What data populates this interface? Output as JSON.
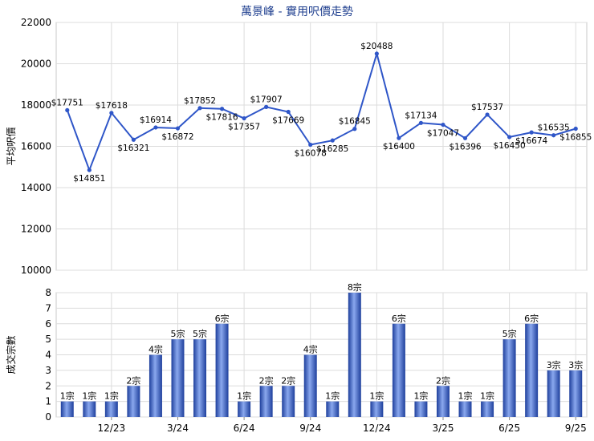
{
  "chart_data": [
    {
      "type": "line",
      "title": "萬景峰 - 實用呎價走勢",
      "ylabel": "平均呎價",
      "ylim": [
        10000,
        22000
      ],
      "yticks": [
        10000,
        12000,
        14000,
        16000,
        18000,
        20000,
        22000
      ],
      "grid": true,
      "color": "#2f56c8",
      "series": [
        {
          "values": [
            17751,
            14851,
            17618,
            16321,
            16914,
            16872,
            17852,
            17816,
            17357,
            17907,
            17669,
            16078,
            16285,
            16845,
            20488,
            16400,
            17134,
            17047,
            16396,
            17537,
            16450,
            16674,
            16535,
            16855
          ],
          "labels": [
            "$17751",
            "$14851",
            "$17618",
            "$16321",
            "$16914",
            "$16872",
            "$17852",
            "$17816",
            "$17357",
            "$17907",
            "$17669",
            "$16078",
            "$16285",
            "$16845",
            "$20488",
            "$16400",
            "$17134",
            "$17047",
            "$16396",
            "$17537",
            "$16450",
            "$16674",
            "$16535",
            "$16855"
          ]
        }
      ]
    },
    {
      "type": "bar",
      "ylabel": "成交宗數",
      "ylim": [
        0,
        8
      ],
      "yticks": [
        0,
        1,
        2,
        3,
        4,
        5,
        6,
        7,
        8
      ],
      "grid": true,
      "color": "#3a62c9",
      "x_tick_labels": [
        "12/23",
        "3/24",
        "6/24",
        "9/24",
        "12/24",
        "3/25",
        "6/25",
        "9/25"
      ],
      "series": [
        {
          "values": [
            1,
            1,
            1,
            2,
            4,
            5,
            5,
            6,
            1,
            2,
            2,
            4,
            1,
            8,
            1,
            6,
            1,
            2,
            1,
            1,
            5,
            6,
            3,
            3
          ],
          "labels": [
            "1宗",
            "1宗",
            "1宗",
            "2宗",
            "4宗",
            "5宗",
            "5宗",
            "6宗",
            "1宗",
            "2宗",
            "2宗",
            "4宗",
            "1宗",
            "8宗",
            "1宗",
            "6宗",
            "1宗",
            "2宗",
            "1宗",
            "1宗",
            "5宗",
            "6宗",
            "3宗",
            "3宗"
          ]
        }
      ]
    }
  ]
}
